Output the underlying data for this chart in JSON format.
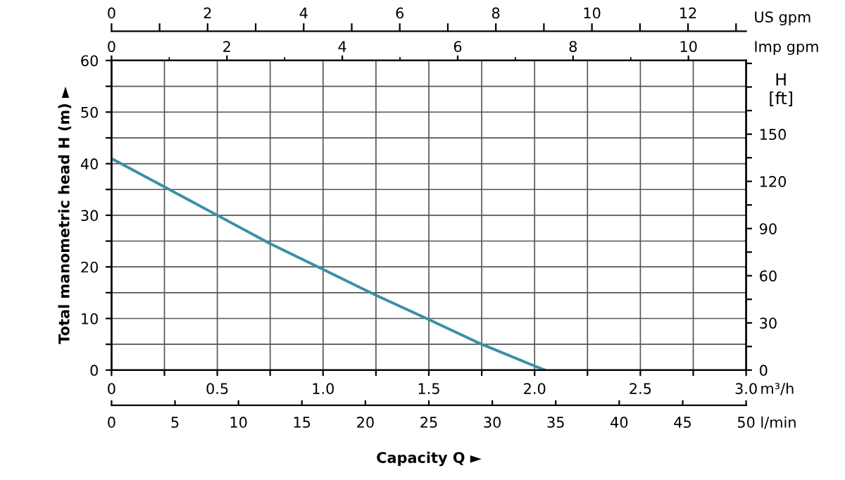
{
  "chart_data": {
    "type": "line",
    "xlabel": "Capacity Q ►",
    "ylabel": "Total manometric head H (m) ►",
    "y2label": "H\n[ft]",
    "x2label": "US gpm",
    "annotations": [
      "m³/h",
      "l/min",
      "0",
      "5",
      "10",
      "15",
      "20",
      "25",
      "30",
      "35",
      "40",
      "45",
      "50",
      "Imp gpm",
      "0",
      "2",
      "4",
      "6",
      "8",
      "10"
    ],
    "x": [
      0,
      0.25,
      0.5,
      0.75,
      1.0,
      1.25,
      1.5,
      1.75,
      2.0,
      2.05
    ],
    "series": [
      {
        "color": "#3a8fa6",
        "values": [
          41,
          35.5,
          30,
          24.5,
          19.5,
          14.5,
          9.8,
          5,
          0.8,
          0
        ]
      }
    ],
    "xlim": [
      0,
      3
    ],
    "ylim": [
      0,
      60
    ],
    "xticks": [
      0,
      {
        "value": 0.25,
        "label": null
      },
      0.5,
      {
        "value": 0.75,
        "label": null
      },
      {
        "value": 1.0,
        "label": "1.0"
      },
      {
        "value": 1.25,
        "label": null
      },
      1.5,
      {
        "value": 1.75,
        "label": null
      },
      {
        "value": 2.0,
        "label": "2.0"
      },
      {
        "value": 2.25,
        "label": null
      },
      2.5,
      {
        "value": 2.75,
        "label": null
      },
      {
        "value": 3.0,
        "label": "3.0"
      }
    ],
    "yticks": [
      0,
      {
        "value": 5,
        "label": null
      },
      10,
      {
        "value": 15,
        "label": null
      },
      20,
      {
        "value": 25,
        "label": null
      },
      30,
      {
        "value": 35,
        "label": null
      },
      40,
      {
        "value": 45,
        "label": null
      },
      50,
      {
        "value": 55,
        "label": null
      },
      60
    ],
    "y2lim": [
      0,
      196.85
    ],
    "y2ticks": [
      0,
      {
        "value": 15,
        "label": null
      },
      30,
      {
        "value": 45,
        "label": null
      },
      60,
      {
        "value": 75,
        "label": null
      },
      90,
      {
        "value": 105,
        "label": null
      },
      120,
      {
        "value": 135,
        "label": null
      },
      150,
      {
        "value": 165,
        "label": null
      },
      {
        "value": 180,
        "label": null
      },
      {
        "value": 195,
        "label": null
      }
    ],
    "x2lim": [
      0,
      13.21
    ],
    "x2ticks": [
      0,
      2,
      4,
      6,
      8,
      10,
      12
    ],
    "grid": true,
    "marker": "none",
    "line_style": "solid"
  }
}
